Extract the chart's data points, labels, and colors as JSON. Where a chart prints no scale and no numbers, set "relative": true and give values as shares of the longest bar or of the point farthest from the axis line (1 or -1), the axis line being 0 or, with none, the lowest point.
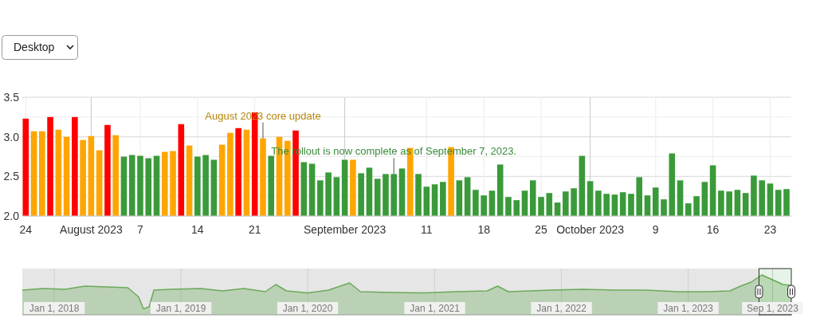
{
  "chart_data": [
    {
      "type": "bar",
      "x": [
        "2023-07-24",
        "2023-07-25",
        "2023-07-26",
        "2023-07-27",
        "2023-07-28",
        "2023-07-29",
        "2023-07-30",
        "2023-07-31",
        "2023-08-01",
        "2023-08-02",
        "2023-08-03",
        "2023-08-04",
        "2023-08-05",
        "2023-08-06",
        "2023-08-07",
        "2023-08-08",
        "2023-08-09",
        "2023-08-10",
        "2023-08-11",
        "2023-08-12",
        "2023-08-13",
        "2023-08-14",
        "2023-08-15",
        "2023-08-16",
        "2023-08-17",
        "2023-08-18",
        "2023-08-19",
        "2023-08-20",
        "2023-08-21",
        "2023-08-22",
        "2023-08-23",
        "2023-08-24",
        "2023-08-25",
        "2023-08-26",
        "2023-08-27",
        "2023-08-28",
        "2023-08-29",
        "2023-08-30",
        "2023-08-31",
        "2023-09-01",
        "2023-09-02",
        "2023-09-03",
        "2023-09-04",
        "2023-09-05",
        "2023-09-06",
        "2023-09-07",
        "2023-09-08",
        "2023-09-09",
        "2023-09-10",
        "2023-09-11",
        "2023-09-12",
        "2023-09-13",
        "2023-09-14",
        "2023-09-15",
        "2023-09-16",
        "2023-09-17",
        "2023-09-18",
        "2023-09-19",
        "2023-09-20",
        "2023-09-21",
        "2023-09-22",
        "2023-09-23",
        "2023-09-24",
        "2023-09-25",
        "2023-09-26",
        "2023-09-27",
        "2023-09-28",
        "2023-09-29",
        "2023-09-30",
        "2023-10-01",
        "2023-10-02",
        "2023-10-03",
        "2023-10-04",
        "2023-10-05",
        "2023-10-06",
        "2023-10-07",
        "2023-10-08",
        "2023-10-09",
        "2023-10-10",
        "2023-10-11",
        "2023-10-12",
        "2023-10-13",
        "2023-10-14",
        "2023-10-15",
        "2023-10-16",
        "2023-10-17",
        "2023-10-18",
        "2023-10-19",
        "2023-10-20",
        "2023-10-21",
        "2023-10-22",
        "2023-10-23",
        "2023-10-24",
        "2023-10-25"
      ],
      "values": [
        3.23,
        3.07,
        3.07,
        3.25,
        3.09,
        3.0,
        3.25,
        2.96,
        3.01,
        2.83,
        3.15,
        3.02,
        2.75,
        2.77,
        2.76,
        2.73,
        2.76,
        2.81,
        2.82,
        3.16,
        2.89,
        2.75,
        2.77,
        2.71,
        2.9,
        3.05,
        3.11,
        3.09,
        3.31,
        2.98,
        2.76,
        3.0,
        2.95,
        3.08,
        2.68,
        2.66,
        2.45,
        2.55,
        2.49,
        2.71,
        2.71,
        2.54,
        2.61,
        2.47,
        2.53,
        2.53,
        2.6,
        2.86,
        2.53,
        2.37,
        2.4,
        2.43,
        2.87,
        2.45,
        2.49,
        2.33,
        2.26,
        2.32,
        2.65,
        2.24,
        2.2,
        2.32,
        2.45,
        2.24,
        2.29,
        2.17,
        2.31,
        2.35,
        2.76,
        2.44,
        2.32,
        2.28,
        2.27,
        2.3,
        2.28,
        2.49,
        2.26,
        2.36,
        2.21,
        2.79,
        2.45,
        2.16,
        2.25,
        2.43,
        2.64,
        2.32,
        2.31,
        2.33,
        2.29,
        2.51,
        2.45,
        2.41,
        2.33,
        2.34
      ],
      "colors": [
        "#ff0000",
        "#ffa500",
        "#ffa500",
        "#ff0000",
        "#ffa500",
        "#ffa500",
        "#ff0000",
        "#ffa500",
        "#ffa500",
        "#ffa500",
        "#ff0000",
        "#ffa500",
        "#3a9a3a",
        "#3a9a3a",
        "#3a9a3a",
        "#3a9a3a",
        "#3a9a3a",
        "#ffa500",
        "#ffa500",
        "#ff0000",
        "#ffa500",
        "#3a9a3a",
        "#3a9a3a",
        "#3a9a3a",
        "#ffa500",
        "#ffa500",
        "#ff0000",
        "#ffa500",
        "#ff0000",
        "#ffa500",
        "#3a9a3a",
        "#ffa500",
        "#ffa500",
        "#ff0000",
        "#3a9a3a",
        "#3a9a3a",
        "#3a9a3a",
        "#3a9a3a",
        "#3a9a3a",
        "#3a9a3a",
        "#ffa500",
        "#3a9a3a",
        "#3a9a3a",
        "#3a9a3a",
        "#3a9a3a",
        "#3a9a3a",
        "#3a9a3a",
        "#ffa500",
        "#3a9a3a",
        "#3a9a3a",
        "#3a9a3a",
        "#3a9a3a",
        "#ffa500",
        "#3a9a3a",
        "#3a9a3a",
        "#3a9a3a",
        "#3a9a3a",
        "#3a9a3a",
        "#3a9a3a",
        "#3a9a3a",
        "#3a9a3a",
        "#3a9a3a",
        "#3a9a3a",
        "#3a9a3a",
        "#3a9a3a",
        "#3a9a3a",
        "#3a9a3a",
        "#3a9a3a",
        "#3a9a3a",
        "#3a9a3a",
        "#3a9a3a",
        "#3a9a3a",
        "#3a9a3a",
        "#3a9a3a",
        "#3a9a3a",
        "#3a9a3a",
        "#3a9a3a",
        "#3a9a3a",
        "#3a9a3a",
        "#3a9a3a",
        "#3a9a3a",
        "#3a9a3a",
        "#3a9a3a",
        "#3a9a3a",
        "#3a9a3a",
        "#3a9a3a",
        "#3a9a3a",
        "#3a9a3a",
        "#3a9a3a",
        "#3a9a3a",
        "#3a9a3a",
        "#3a9a3a",
        "#3a9a3a",
        "#3a9a3a"
      ],
      "xlim": [
        "2023-07-23T14:00",
        "2023-10-25T14:00"
      ],
      "xticks": [
        {
          "value": "2023-07-24",
          "label": "24"
        },
        {
          "value": "2023-08-01",
          "label": "August 2023"
        },
        {
          "value": "2023-08-07",
          "label": "7"
        },
        {
          "value": "2023-08-14",
          "label": "14"
        },
        {
          "value": "2023-08-21",
          "label": "21"
        },
        {
          "value": "2023-09-01",
          "label": "September 2023"
        },
        {
          "value": "2023-09-11",
          "label": "11"
        },
        {
          "value": "2023-09-18",
          "label": "18"
        },
        {
          "value": "2023-09-25",
          "label": "25"
        },
        {
          "value": "2023-10-01",
          "label": "October 2023"
        },
        {
          "value": "2023-10-09",
          "label": "9"
        },
        {
          "value": "2023-10-16",
          "label": "16"
        },
        {
          "value": "2023-10-23",
          "label": "23"
        }
      ],
      "ylim": [
        2.0,
        3.5
      ],
      "yticks": [
        {
          "value": 2,
          "label": "2.0"
        },
        {
          "value": 2.25,
          "label": null
        },
        {
          "value": 2.5,
          "label": "2.5"
        },
        {
          "value": 2.75,
          "label": null
        },
        {
          "value": 3,
          "label": "3.0"
        },
        {
          "value": 3.25,
          "label": null
        },
        {
          "value": 3.5,
          "label": "3.5"
        }
      ],
      "grid": true,
      "annotations": [
        "Desktop",
        {
          "text": "August 2023 core update",
          "x": "2023-08-22",
          "y": 2.98
        },
        {
          "text": "The rollout is now complete as of September 7, 2023.",
          "x": "2023-09-07",
          "y": 2.53
        }
      ]
    },
    {
      "type": "area",
      "relative": true,
      "color": "#6aaa5a",
      "tick_labels": "x",
      "grid": "x",
      "x": [
        "2017-10-01",
        "2017-12-01",
        "2018-02-01",
        "2018-03-15",
        "2018-04-01",
        "2018-06-01",
        "2018-08-01",
        "2018-09-01",
        "2018-09-15",
        "2018-10-01",
        "2018-10-15",
        "2018-12-01",
        "2019-03-01",
        "2019-05-01",
        "2019-07-01",
        "2019-09-01",
        "2019-10-01",
        "2019-11-01",
        "2020-01-01",
        "2020-03-01",
        "2020-05-01",
        "2020-06-01",
        "2020-09-01",
        "2020-12-01",
        "2021-03-01",
        "2021-06-01",
        "2021-07-01",
        "2021-08-01",
        "2021-12-01",
        "2022-03-01",
        "2022-06-01",
        "2022-09-01",
        "2022-12-01",
        "2023-03-01",
        "2023-05-01",
        "2023-06-01",
        "2023-07-01",
        "2023-08-01",
        "2023-09-01",
        "2023-10-01",
        "2023-10-25"
      ],
      "values": [
        0.62,
        0.66,
        0.64,
        0.7,
        0.72,
        0.7,
        0.68,
        0.45,
        0.15,
        0.2,
        0.62,
        0.64,
        0.66,
        0.6,
        0.66,
        0.58,
        0.76,
        0.6,
        0.55,
        0.62,
        0.8,
        0.58,
        0.56,
        0.55,
        0.58,
        0.6,
        0.72,
        0.58,
        0.62,
        0.64,
        0.62,
        0.62,
        0.58,
        0.58,
        0.6,
        0.72,
        0.82,
        1.0,
        0.88,
        0.76,
        0.74
      ],
      "xlim": [
        "2017-10-01",
        "2023-10-25"
      ],
      "bands": [
        {
          "axis": "x",
          "from": "2023-07-24",
          "to": "2023-10-25"
        }
      ],
      "xticks": [
        {
          "value": "2018-01-01",
          "label": "Jan 1, 2018"
        },
        {
          "value": "2019-01-01",
          "label": "Jan 1, 2019"
        },
        {
          "value": "2020-01-01",
          "label": "Jan 1, 2020"
        },
        {
          "value": "2021-01-01",
          "label": "Jan 1, 2021"
        },
        {
          "value": "2022-01-01",
          "label": "Jan 1, 2022"
        },
        {
          "value": "2023-01-01",
          "label": "Jan 1, 2023"
        },
        {
          "value": "2023-09-01",
          "label": "Sep 1, 2023"
        }
      ]
    }
  ]
}
